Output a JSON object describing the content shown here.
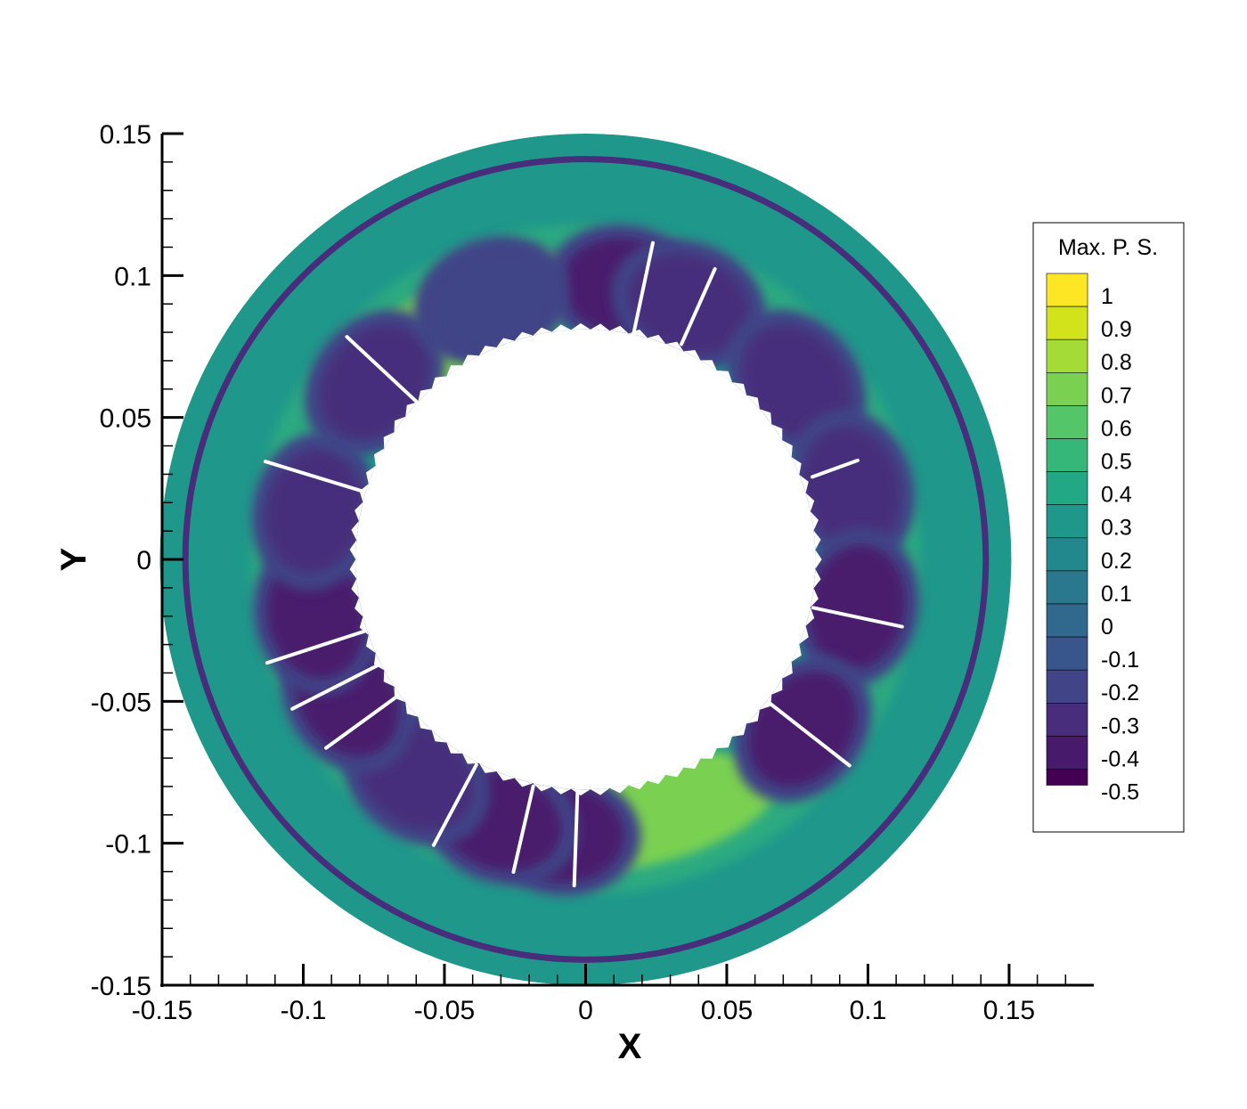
{
  "chart_data": {
    "type": "heatmap",
    "title": "",
    "xlabel": "X",
    "ylabel": "Y",
    "xlim": [
      -0.15,
      0.18
    ],
    "ylim": [
      -0.15,
      0.15
    ],
    "x_ticks": [
      "-0.15",
      "-0.1",
      "-0.05",
      "0",
      "0.05",
      "0.1",
      "0.15"
    ],
    "x_tick_values": [
      -0.15,
      -0.1,
      -0.05,
      0,
      0.05,
      0.1,
      0.15
    ],
    "y_ticks": [
      "0.15",
      "0.1",
      "0.05",
      "0",
      "-0.05",
      "-0.1",
      "-0.15"
    ],
    "y_tick_values": [
      0.15,
      0.1,
      0.05,
      0,
      -0.05,
      -0.1,
      -0.15
    ],
    "legend": {
      "title": "Max. P. S.",
      "placement": "right",
      "levels": [
        "1",
        "0.9",
        "0.8",
        "0.7",
        "0.6",
        "0.5",
        "0.4",
        "0.3",
        "0.2",
        "0.1",
        "0",
        "-0.1",
        "-0.2",
        "-0.3",
        "-0.4",
        "-0.5"
      ],
      "level_values": [
        1,
        0.9,
        0.8,
        0.7,
        0.6,
        0.5,
        0.4,
        0.3,
        0.2,
        0.1,
        0,
        -0.1,
        -0.2,
        -0.3,
        -0.4,
        -0.5
      ],
      "colors": [
        "#fde725",
        "#d2e21b",
        "#a5db36",
        "#7ad151",
        "#54c568",
        "#35b779",
        "#22a884",
        "#1f988b",
        "#23888e",
        "#2a788e",
        "#31688e",
        "#39568c",
        "#414487",
        "#472d7b",
        "#481a6c",
        "#440154"
      ]
    },
    "domain": {
      "outer_radius": 0.15,
      "inner_radius": 0.081,
      "background_value": 0.35,
      "outer_ring_radius": 0.141,
      "outer_ring_value": -0.3
    },
    "damage_lobes": [
      {
        "angle_deg": 82,
        "value": -0.45
      },
      {
        "angle_deg": 68,
        "value": -0.35
      },
      {
        "angle_deg": 40,
        "value": -0.35
      },
      {
        "angle_deg": 15,
        "value": -0.35
      },
      {
        "angle_deg": -10,
        "value": -0.45
      },
      {
        "angle_deg": -38,
        "value": -0.45
      },
      {
        "angle_deg": -95,
        "value": -0.4
      },
      {
        "angle_deg": -108,
        "value": -0.4
      },
      {
        "angle_deg": -128,
        "value": -0.35
      },
      {
        "angle_deg": -150,
        "value": -0.45
      },
      {
        "angle_deg": -168,
        "value": -0.45
      },
      {
        "angle_deg": 170,
        "value": -0.35
      },
      {
        "angle_deg": 140,
        "value": -0.35
      },
      {
        "angle_deg": 110,
        "value": -0.25
      }
    ],
    "high_zones": [
      {
        "angle_deg": 118,
        "value": 0.7
      },
      {
        "angle_deg": -75,
        "value": 0.65
      }
    ],
    "cracks": [
      {
        "angle_deg": 78,
        "r": [
          0.081,
          0.114
        ]
      },
      {
        "angle_deg": 66,
        "r": [
          0.083,
          0.112
        ]
      },
      {
        "angle_deg": 20,
        "r": [
          0.085,
          0.102
        ]
      },
      {
        "angle_deg": -12,
        "r": [
          0.082,
          0.114
        ]
      },
      {
        "angle_deg": -38,
        "r": [
          0.082,
          0.118
        ]
      },
      {
        "angle_deg": 137,
        "r": [
          0.081,
          0.115
        ]
      },
      {
        "angle_deg": 163,
        "r": [
          0.082,
          0.118
        ]
      },
      {
        "angle_deg": -162,
        "r": [
          0.082,
          0.118
        ]
      },
      {
        "angle_deg": -153,
        "r": [
          0.082,
          0.116
        ]
      },
      {
        "angle_deg": -144,
        "r": [
          0.083,
          0.113
        ]
      },
      {
        "angle_deg": -118,
        "r": [
          0.082,
          0.114
        ]
      },
      {
        "angle_deg": -103,
        "r": [
          0.082,
          0.113
        ]
      },
      {
        "angle_deg": -92,
        "r": [
          0.082,
          0.115
        ]
      }
    ]
  }
}
